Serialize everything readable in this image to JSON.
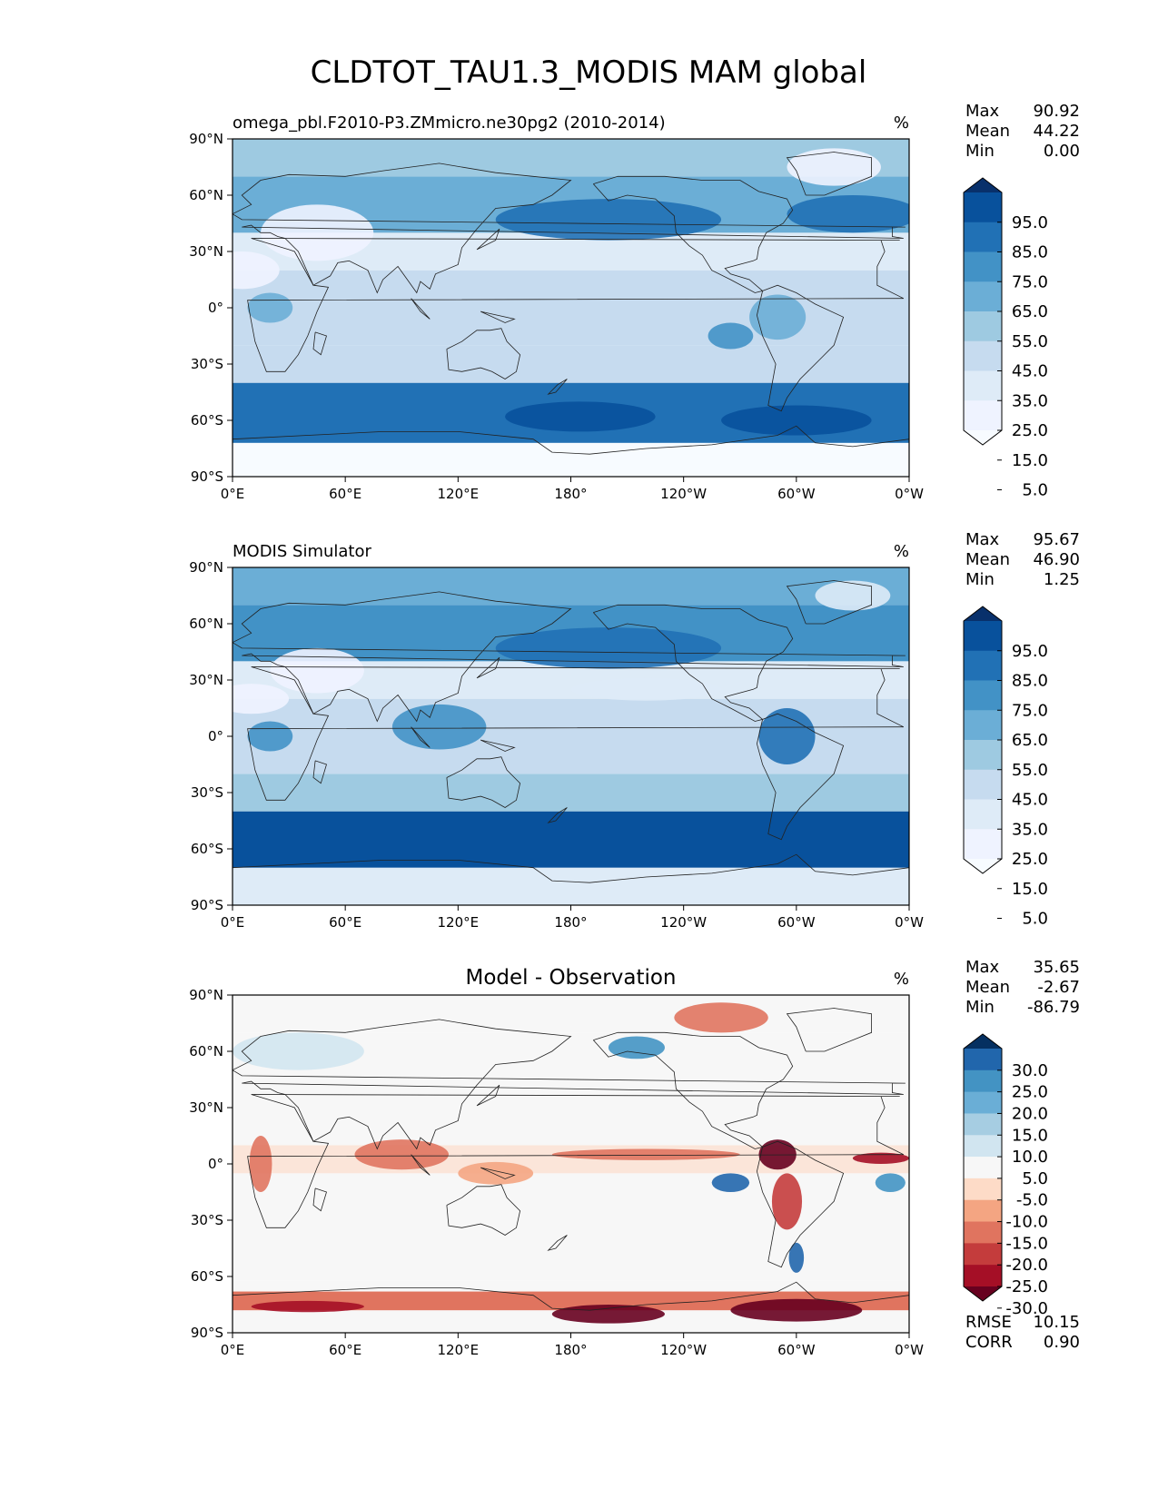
{
  "figure": {
    "title": "CLDTOT_TAU1.3_MODIS MAM global"
  },
  "chart_data": [
    {
      "type": "heatmap",
      "subtitle": "omega_pbl.F2010-P3.ZMmicro.ne30pg2 (2010-2014)",
      "units": "%",
      "stats": [
        {
          "label": "Max",
          "value": "90.92"
        },
        {
          "label": "Mean",
          "value": "44.22"
        },
        {
          "label": "Min",
          "value": "0.00"
        }
      ],
      "colorbar": {
        "ticks": [
          "95.0",
          "85.0",
          "75.0",
          "65.0",
          "55.0",
          "45.0",
          "35.0",
          "25.0",
          "15.0",
          "5.0"
        ],
        "colors": [
          "#08306b",
          "#08519c",
          "#2171b5",
          "#4292c6",
          "#6baed6",
          "#9ecae1",
          "#c6dbef",
          "#deebf7",
          "#eff3ff",
          "#f7fbff"
        ]
      },
      "x_ticks": [
        "0°E",
        "60°E",
        "120°E",
        "180°",
        "120°W",
        "60°W",
        "0°W"
      ],
      "y_ticks": [
        "90°N",
        "60°N",
        "30°N",
        "0°",
        "30°S",
        "60°S",
        "90°S"
      ],
      "xlim": [
        0,
        360
      ],
      "ylim": [
        -90,
        90
      ],
      "bands": [
        {
          "lat": [
            -90,
            -72
          ],
          "color": "#f7fbff"
        },
        {
          "lat": [
            -72,
            -40
          ],
          "color": "#2171b5"
        },
        {
          "lat": [
            -40,
            -20
          ],
          "color": "#c6dbef"
        },
        {
          "lat": [
            -20,
            20
          ],
          "color": "#c6dbef"
        },
        {
          "lat": [
            20,
            40
          ],
          "color": "#deebf7"
        },
        {
          "lat": [
            40,
            70
          ],
          "color": "#6baed6"
        },
        {
          "lat": [
            70,
            90
          ],
          "color": "#9ecae1"
        }
      ],
      "features": [
        {
          "lon": 200,
          "lat": 47,
          "rlon": 60,
          "rlat": 11,
          "color": "#2171b5"
        },
        {
          "lon": 330,
          "lat": 50,
          "rlon": 35,
          "rlat": 10,
          "color": "#2171b5"
        },
        {
          "lon": 20,
          "lat": 0,
          "rlon": 12,
          "rlat": 8,
          "color": "#6baed6"
        },
        {
          "lon": 290,
          "lat": -5,
          "rlon": 15,
          "rlat": 12,
          "color": "#6baed6"
        },
        {
          "lon": 265,
          "lat": -15,
          "rlon": 12,
          "rlat": 7,
          "color": "#4292c6"
        },
        {
          "lon": 45,
          "lat": 40,
          "rlon": 30,
          "rlat": 15,
          "color": "#eff3ff"
        },
        {
          "lon": 5,
          "lat": 20,
          "rlon": 20,
          "rlat": 10,
          "color": "#eff3ff"
        },
        {
          "lon": 185,
          "lat": -58,
          "rlon": 40,
          "rlat": 8,
          "color": "#08519c"
        },
        {
          "lon": 300,
          "lat": -60,
          "rlon": 40,
          "rlat": 8,
          "color": "#08519c"
        },
        {
          "lon": 320,
          "lat": 75,
          "rlon": 25,
          "rlat": 10,
          "color": "#eff3ff"
        }
      ]
    },
    {
      "type": "heatmap",
      "subtitle": "MODIS Simulator",
      "units": "%",
      "stats": [
        {
          "label": "Max",
          "value": "95.67"
        },
        {
          "label": "Mean",
          "value": "46.90"
        },
        {
          "label": "Min",
          "value": "1.25"
        }
      ],
      "colorbar": {
        "ticks": [
          "95.0",
          "85.0",
          "75.0",
          "65.0",
          "55.0",
          "45.0",
          "35.0",
          "25.0",
          "15.0",
          "5.0"
        ],
        "colors": [
          "#08306b",
          "#08519c",
          "#2171b5",
          "#4292c6",
          "#6baed6",
          "#9ecae1",
          "#c6dbef",
          "#deebf7",
          "#eff3ff",
          "#f7fbff"
        ]
      },
      "x_ticks": [
        "0°E",
        "60°E",
        "120°E",
        "180°",
        "120°W",
        "60°W",
        "0°W"
      ],
      "y_ticks": [
        "90°N",
        "60°N",
        "30°N",
        "0°",
        "30°S",
        "60°S",
        "90°S"
      ],
      "xlim": [
        0,
        360
      ],
      "ylim": [
        -90,
        90
      ],
      "bands": [
        {
          "lat": [
            -90,
            -70
          ],
          "color": "#deebf7"
        },
        {
          "lat": [
            -70,
            -40
          ],
          "color": "#08519c"
        },
        {
          "lat": [
            -40,
            -20
          ],
          "color": "#9ecae1"
        },
        {
          "lat": [
            -20,
            20
          ],
          "color": "#c6dbef"
        },
        {
          "lat": [
            20,
            40
          ],
          "color": "#deebf7"
        },
        {
          "lat": [
            40,
            70
          ],
          "color": "#4292c6"
        },
        {
          "lat": [
            70,
            90
          ],
          "color": "#6baed6"
        }
      ],
      "features": [
        {
          "lon": 200,
          "lat": 47,
          "rlon": 60,
          "rlat": 11,
          "color": "#2171b5"
        },
        {
          "lon": 295,
          "lat": 0,
          "rlon": 15,
          "rlat": 15,
          "color": "#2171b5"
        },
        {
          "lon": 20,
          "lat": 0,
          "rlon": 12,
          "rlat": 8,
          "color": "#4292c6"
        },
        {
          "lon": 110,
          "lat": 5,
          "rlon": 25,
          "rlat": 12,
          "color": "#4292c6"
        },
        {
          "lon": 45,
          "lat": 35,
          "rlon": 25,
          "rlat": 12,
          "color": "#eff3ff"
        },
        {
          "lon": 10,
          "lat": 20,
          "rlon": 20,
          "rlat": 8,
          "color": "#eff3ff"
        },
        {
          "lon": 330,
          "lat": 75,
          "rlon": 20,
          "rlat": 8,
          "color": "#deebf7"
        },
        {
          "lon": 220,
          "lat": 25,
          "rlon": 40,
          "rlat": 6,
          "color": "#deebf7"
        }
      ]
    },
    {
      "type": "heatmap",
      "subtitle": "Model - Observation",
      "units": "%",
      "stats": [
        {
          "label": "Max",
          "value": "35.65"
        },
        {
          "label": "Mean",
          "value": "-2.67"
        },
        {
          "label": "Min",
          "value": "-86.79"
        }
      ],
      "colorbar": {
        "ticks": [
          "30.0",
          "25.0",
          "20.0",
          "15.0",
          "10.0",
          "5.0",
          "-5.0",
          "-10.0",
          "-15.0",
          "-20.0",
          "-25.0",
          "-30.0"
        ],
        "colors": [
          "#053061",
          "#2166ac",
          "#4393c3",
          "#6aaed6",
          "#a6cde2",
          "#d1e5f0",
          "#f7f7f7",
          "#fddbc7",
          "#f4a582",
          "#e0745f",
          "#c43c3c",
          "#a50f26",
          "#67001f"
        ]
      },
      "x_ticks": [
        "0°E",
        "60°E",
        "120°E",
        "180°",
        "120°W",
        "60°W",
        "0°W"
      ],
      "y_ticks": [
        "90°N",
        "60°N",
        "30°N",
        "0°",
        "30°S",
        "60°S",
        "90°S"
      ],
      "xlim": [
        0,
        360
      ],
      "ylim": [
        -90,
        90
      ],
      "bands": [
        {
          "lat": [
            -90,
            -78
          ],
          "color": "#f7f7f7"
        },
        {
          "lat": [
            -78,
            -68
          ],
          "color": "#e0745f"
        },
        {
          "lat": [
            -68,
            -62
          ],
          "color": "#f7f7f7"
        },
        {
          "lat": [
            -62,
            -5
          ],
          "color": "#f7f7f7"
        },
        {
          "lat": [
            -5,
            10
          ],
          "color": "#fbe5d9"
        },
        {
          "lat": [
            10,
            70
          ],
          "color": "#f7f7f7"
        },
        {
          "lat": [
            70,
            90
          ],
          "color": "#f7f7f7"
        }
      ],
      "features": [
        {
          "lon": 200,
          "lat": -80,
          "rlon": 30,
          "rlat": 5,
          "color": "#67001f"
        },
        {
          "lon": 300,
          "lat": -78,
          "rlon": 35,
          "rlat": 6,
          "color": "#67001f"
        },
        {
          "lon": 40,
          "lat": -76,
          "rlon": 30,
          "rlat": 3,
          "color": "#a50f26"
        },
        {
          "lon": 290,
          "lat": 5,
          "rlon": 10,
          "rlat": 8,
          "color": "#67001f"
        },
        {
          "lon": 295,
          "lat": -20,
          "rlon": 8,
          "rlat": 15,
          "color": "#c43c3c"
        },
        {
          "lon": 345,
          "lat": 3,
          "rlon": 15,
          "rlat": 3,
          "color": "#a50f26"
        },
        {
          "lon": 220,
          "lat": 5,
          "rlon": 50,
          "rlat": 3,
          "color": "#e0745f"
        },
        {
          "lon": 90,
          "lat": 5,
          "rlon": 25,
          "rlat": 8,
          "color": "#e0745f"
        },
        {
          "lon": 140,
          "lat": -5,
          "rlon": 20,
          "rlat": 6,
          "color": "#f4a582"
        },
        {
          "lon": 265,
          "lat": -10,
          "rlon": 10,
          "rlat": 5,
          "color": "#2166ac"
        },
        {
          "lon": 350,
          "lat": -10,
          "rlon": 8,
          "rlat": 5,
          "color": "#4393c3"
        },
        {
          "lon": 215,
          "lat": 62,
          "rlon": 15,
          "rlat": 6,
          "color": "#4393c3"
        },
        {
          "lon": 260,
          "lat": 78,
          "rlon": 25,
          "rlat": 8,
          "color": "#e0745f"
        },
        {
          "lon": 35,
          "lat": 60,
          "rlon": 35,
          "rlat": 10,
          "color": "#d1e5f0"
        },
        {
          "lon": 15,
          "lat": 0,
          "rlon": 6,
          "rlat": 15,
          "color": "#e0745f"
        },
        {
          "lon": 300,
          "lat": -50,
          "rlon": 4,
          "rlat": 8,
          "color": "#2166ac"
        }
      ],
      "extra_stats": [
        {
          "label": "RMSE",
          "value": "10.15"
        },
        {
          "label": "CORR",
          "value": "0.90"
        }
      ]
    }
  ]
}
